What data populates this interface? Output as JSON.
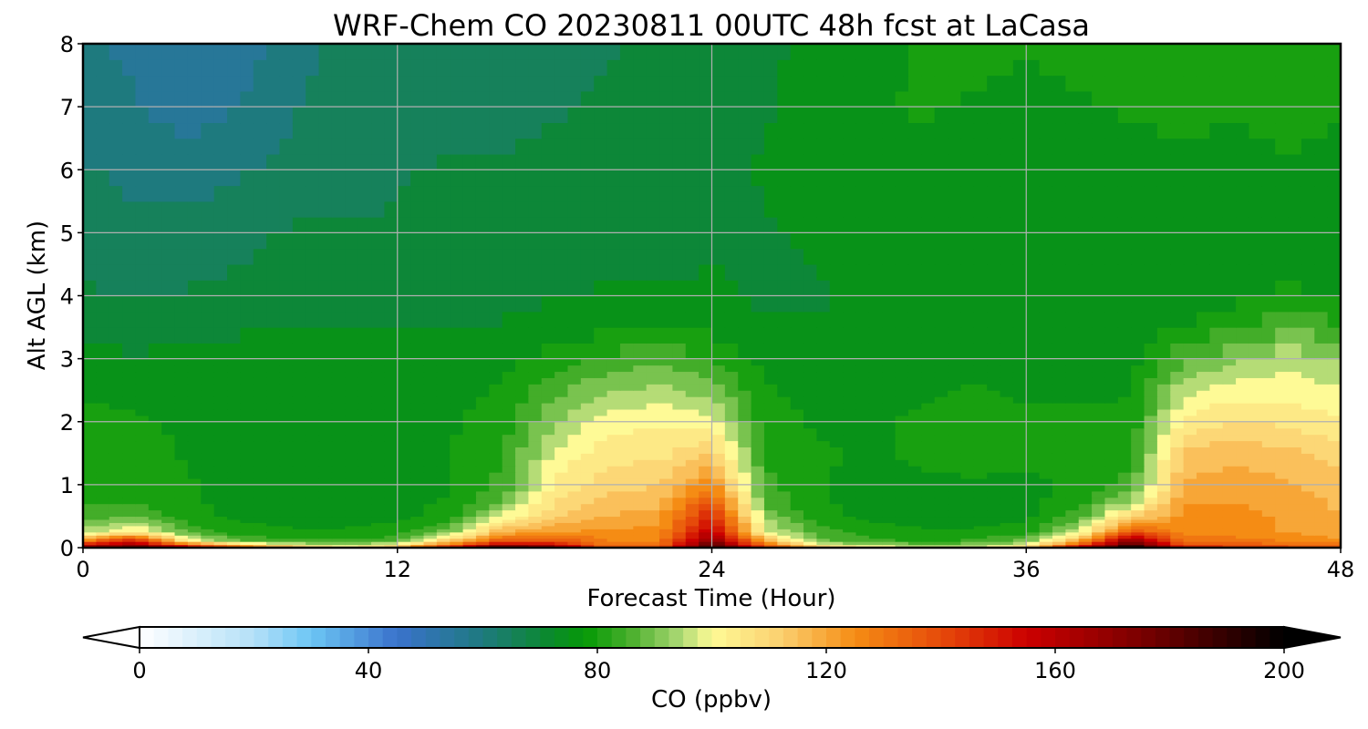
{
  "chart_data": {
    "type": "heatmap",
    "title": "WRF-Chem CO  20230811 00UTC 48h fcst at LaCasa",
    "xlabel": "Forecast Time (Hour)",
    "ylabel": "Alt AGL (km)",
    "xlim": [
      0,
      48
    ],
    "ylim": [
      0,
      8
    ],
    "x_ticks": [
      0,
      12,
      24,
      36,
      48
    ],
    "y_ticks": [
      0,
      1,
      2,
      3,
      4,
      5,
      6,
      7,
      8
    ],
    "grid": true,
    "x": [
      0,
      2,
      4,
      6,
      8,
      10,
      12,
      14,
      16,
      18,
      20,
      22,
      24,
      26,
      28,
      30,
      32,
      34,
      36,
      38,
      40,
      42,
      44,
      46,
      48
    ],
    "y": [
      0,
      0.1,
      0.25,
      0.5,
      0.75,
      1,
      1.5,
      2,
      2.5,
      3,
      3.5,
      4,
      5,
      6,
      7,
      8
    ],
    "values_ppbv": [
      [
        175,
        185,
        165,
        140,
        120,
        105,
        120,
        150,
        190,
        175,
        135,
        135,
        192,
        145,
        115,
        105,
        100,
        100,
        110,
        160,
        200,
        150,
        145,
        140,
        135
      ],
      [
        130,
        155,
        105,
        88,
        85,
        84,
        86,
        115,
        140,
        140,
        128,
        128,
        175,
        122,
        90,
        84,
        82,
        84,
        90,
        120,
        175,
        132,
        130,
        128,
        125
      ],
      [
        95,
        105,
        86,
        80,
        78,
        78,
        80,
        90,
        118,
        122,
        124,
        124,
        160,
        100,
        85,
        80,
        78,
        78,
        80,
        98,
        140,
        125,
        125,
        122,
        118
      ],
      [
        85,
        88,
        80,
        76,
        76,
        76,
        76,
        80,
        98,
        112,
        118,
        120,
        148,
        92,
        80,
        76,
        76,
        76,
        76,
        85,
        110,
        124,
        124,
        122,
        118
      ],
      [
        82,
        82,
        78,
        76,
        77,
        76,
        76,
        78,
        88,
        108,
        114,
        116,
        138,
        86,
        78,
        76,
        76,
        76,
        76,
        80,
        92,
        122,
        122,
        120,
        116
      ],
      [
        80,
        80,
        78,
        76,
        76,
        76,
        76,
        77,
        84,
        104,
        110,
        112,
        126,
        84,
        78,
        76,
        77,
        77,
        77,
        78,
        85,
        118,
        120,
        118,
        114
      ],
      [
        80,
        79,
        77,
        76,
        76,
        77,
        76,
        77,
        82,
        98,
        106,
        106,
        112,
        82,
        78,
        77,
        78,
        79,
        78,
        78,
        80,
        114,
        116,
        114,
        110
      ],
      [
        79,
        78,
        77,
        76,
        76,
        76,
        76,
        77,
        80,
        92,
        100,
        102,
        100,
        80,
        77,
        77,
        78,
        79,
        78,
        78,
        79,
        104,
        108,
        106,
        104
      ],
      [
        77,
        76,
        76,
        75,
        75,
        76,
        76,
        76,
        78,
        86,
        92,
        94,
        90,
        78,
        76,
        76,
        77,
        78,
        77,
        77,
        77,
        96,
        100,
        100,
        98
      ],
      [
        74,
        73,
        74,
        74,
        74,
        74,
        74,
        74,
        76,
        80,
        84,
        86,
        82,
        76,
        75,
        75,
        76,
        76,
        76,
        76,
        76,
        86,
        92,
        96,
        92
      ],
      [
        70,
        70,
        71,
        72,
        72,
        72,
        72,
        72,
        73,
        75,
        76,
        77,
        76,
        73,
        73,
        74,
        74,
        74,
        74,
        74,
        74,
        78,
        82,
        86,
        84
      ],
      [
        68,
        67,
        68,
        69,
        70,
        70,
        70,
        70,
        71,
        72,
        73,
        73,
        73,
        72,
        72,
        73,
        73,
        73,
        73,
        73,
        73,
        74,
        76,
        78,
        77
      ],
      [
        65,
        64,
        64,
        66,
        68,
        68,
        68,
        69,
        69,
        70,
        71,
        71,
        72,
        72,
        73,
        74,
        74,
        74,
        73,
        73,
        74,
        74,
        75,
        76,
        75
      ],
      [
        63,
        61,
        60,
        62,
        64,
        66,
        67,
        68,
        68,
        69,
        70,
        70,
        71,
        73,
        75,
        76,
        76,
        75,
        74,
        75,
        76,
        76,
        76,
        77,
        76
      ],
      [
        60,
        58,
        55,
        58,
        62,
        65,
        66,
        66,
        66,
        67,
        68,
        69,
        70,
        72,
        75,
        77,
        78,
        77,
        76,
        77,
        78,
        79,
        78,
        79,
        78
      ],
      [
        58,
        56,
        53,
        55,
        60,
        64,
        65,
        63,
        64,
        66,
        67,
        68,
        69,
        71,
        74,
        76,
        78,
        79,
        78,
        79,
        80,
        80,
        80,
        81,
        80
      ]
    ],
    "colorbar": {
      "label": "CO  (ppbv)",
      "min": 0,
      "max": 200,
      "ticks": [
        0,
        40,
        80,
        120,
        160,
        200
      ],
      "extend": "both",
      "colors": {
        "v0": "#ffffff",
        "v20": "#b4e0f8",
        "v30": "#6cc6f4",
        "v45": "#3a72cc",
        "v60": "#1e7a7e",
        "v72": "#0a8a2a",
        "v78": "#069a06",
        "v86": "#4cb02e",
        "v94": "#a6d670",
        "v100": "#fefa96",
        "v112": "#fbd070",
        "v125": "#f58c14",
        "v140": "#e64a0a",
        "v155": "#cc0000",
        "v175": "#7a0000",
        "v200": "#000000"
      }
    }
  }
}
